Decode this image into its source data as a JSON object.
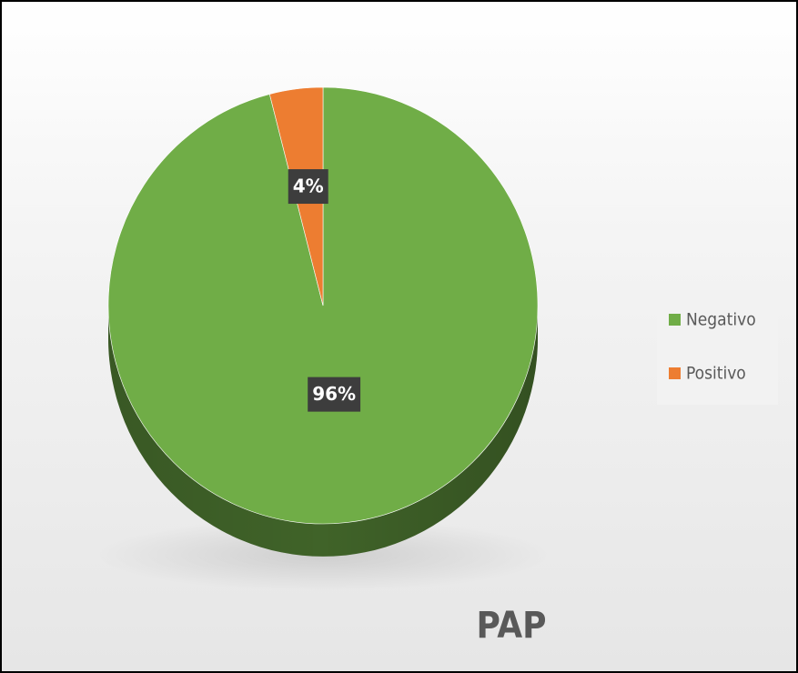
{
  "chart_data": {
    "type": "pie",
    "title": "PAP",
    "categories": [
      "Negativo",
      "Positivo"
    ],
    "values": [
      96,
      4
    ],
    "value_labels": [
      "96%",
      "4%"
    ],
    "colors": [
      "#70ad47",
      "#ed7d31"
    ],
    "legend": "right"
  }
}
